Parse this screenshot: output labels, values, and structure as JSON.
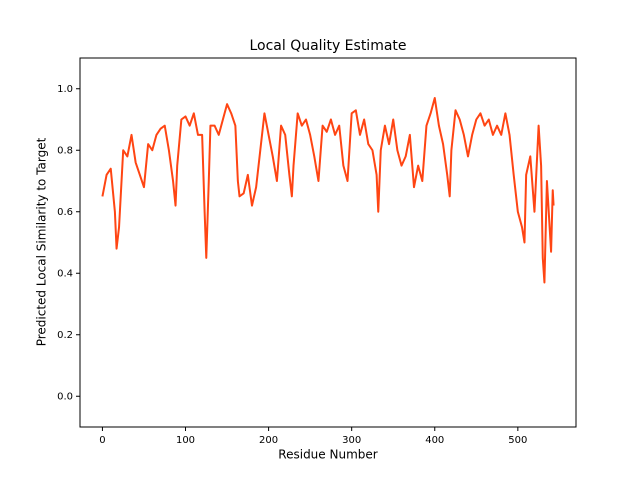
{
  "chart_data": {
    "type": "line",
    "title": "Local Quality Estimate",
    "x_label": "Residue Number",
    "y_label": "Predicted Local Similarity to Target",
    "xlim": [
      -27,
      570
    ],
    "ylim": [
      -0.1,
      1.1
    ],
    "xticks": [
      0,
      100,
      200,
      300,
      400,
      500
    ],
    "yticks": [
      {
        "value": 0,
        "label": "0.0"
      },
      0.2,
      0.4,
      0.6,
      0.8,
      {
        "value": 1,
        "label": "1.0"
      }
    ],
    "grid": false,
    "series": [
      {
        "color": "#ff4513",
        "x": [
          0,
          5,
          10,
          15,
          17,
          20,
          25,
          30,
          35,
          40,
          45,
          50,
          55,
          60,
          65,
          70,
          75,
          80,
          85,
          88,
          90,
          95,
          100,
          105,
          110,
          115,
          120,
          123,
          125,
          128,
          130,
          135,
          140,
          145,
          150,
          155,
          160,
          163,
          165,
          170,
          175,
          180,
          185,
          190,
          195,
          200,
          205,
          210,
          215,
          220,
          225,
          228,
          230,
          235,
          240,
          245,
          250,
          255,
          260,
          265,
          270,
          275,
          280,
          285,
          290,
          295,
          300,
          305,
          310,
          315,
          320,
          325,
          330,
          332,
          335,
          340,
          345,
          350,
          355,
          360,
          365,
          370,
          375,
          380,
          385,
          390,
          395,
          400,
          405,
          410,
          415,
          418,
          420,
          425,
          430,
          435,
          440,
          445,
          450,
          455,
          460,
          465,
          470,
          475,
          480,
          485,
          490,
          495,
          500,
          505,
          508,
          510,
          515,
          520,
          525,
          528,
          530,
          532,
          535,
          540,
          542,
          543
        ],
        "values": [
          0.65,
          0.72,
          0.74,
          0.6,
          0.48,
          0.55,
          0.8,
          0.78,
          0.85,
          0.76,
          0.72,
          0.68,
          0.82,
          0.8,
          0.85,
          0.87,
          0.88,
          0.8,
          0.7,
          0.62,
          0.75,
          0.9,
          0.91,
          0.88,
          0.92,
          0.85,
          0.85,
          0.6,
          0.45,
          0.7,
          0.88,
          0.88,
          0.85,
          0.9,
          0.95,
          0.92,
          0.88,
          0.7,
          0.65,
          0.66,
          0.72,
          0.62,
          0.68,
          0.8,
          0.92,
          0.85,
          0.78,
          0.7,
          0.88,
          0.85,
          0.72,
          0.65,
          0.75,
          0.92,
          0.88,
          0.9,
          0.85,
          0.78,
          0.7,
          0.88,
          0.86,
          0.9,
          0.85,
          0.88,
          0.75,
          0.7,
          0.92,
          0.93,
          0.85,
          0.9,
          0.82,
          0.8,
          0.72,
          0.6,
          0.8,
          0.88,
          0.82,
          0.9,
          0.8,
          0.75,
          0.78,
          0.85,
          0.68,
          0.75,
          0.7,
          0.88,
          0.92,
          0.97,
          0.88,
          0.82,
          0.72,
          0.65,
          0.8,
          0.93,
          0.9,
          0.85,
          0.78,
          0.85,
          0.9,
          0.92,
          0.88,
          0.9,
          0.85,
          0.88,
          0.85,
          0.92,
          0.85,
          0.72,
          0.6,
          0.55,
          0.5,
          0.72,
          0.78,
          0.6,
          0.88,
          0.75,
          0.45,
          0.37,
          0.7,
          0.47,
          0.67,
          0.62
        ]
      }
    ]
  }
}
